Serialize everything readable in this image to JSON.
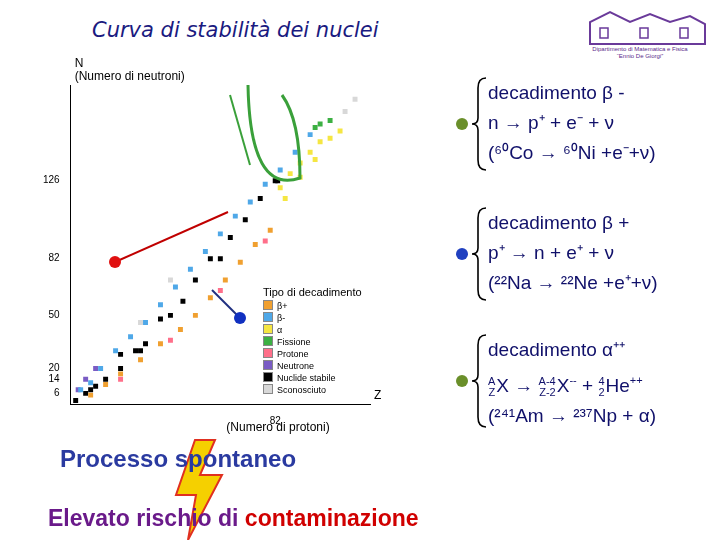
{
  "title": "Curva di stabilità dei nuclei",
  "logo": [
    "Dipartimento di Matematica e Fisica",
    "“Ennio De Giorgi”"
  ],
  "chart_data": {
    "type": "scatter",
    "xlabel": [
      "Z",
      "(Numero di protoni)"
    ],
    "ylabel": [
      "N",
      "(Numero di neutroni)"
    ],
    "xlim": [
      0,
      120
    ],
    "ylim": [
      0,
      180
    ],
    "xticks": [
      82
    ],
    "yticks": [
      6,
      14,
      20,
      50,
      82,
      126
    ],
    "grid": false,
    "legend": "lower right",
    "legend_title": "Tipo di decadimento",
    "series": [
      {
        "name": "β+",
        "color": "#f0a030",
        "marker": "square",
        "x": [
          8,
          14,
          20,
          28,
          36,
          44,
          50,
          56,
          62,
          68,
          74,
          80
        ],
        "y": [
          5,
          11,
          17,
          25,
          34,
          42,
          50,
          60,
          70,
          80,
          90,
          98
        ]
      },
      {
        "name": "β-",
        "color": "#4fa8e8",
        "marker": "square",
        "x": [
          4,
          8,
          12,
          18,
          24,
          30,
          36,
          42,
          48,
          54,
          60,
          66,
          72,
          78,
          84,
          90,
          96
        ],
        "y": [
          8,
          12,
          20,
          30,
          38,
          46,
          56,
          66,
          76,
          86,
          96,
          106,
          114,
          124,
          132,
          142,
          152
        ]
      },
      {
        "name": "α",
        "color": "#f5e642",
        "marker": "square",
        "x": [
          84,
          88,
          92,
          96,
          100,
          104,
          108,
          86,
          92,
          98
        ],
        "y": [
          122,
          130,
          136,
          142,
          148,
          150,
          154,
          116,
          128,
          138
        ]
      },
      {
        "name": "Fissione",
        "color": "#3cb043",
        "marker": "square",
        "x": [
          100,
          104,
          98
        ],
        "y": [
          158,
          160,
          156
        ]
      },
      {
        "name": "Protone",
        "color": "#ff6f8a",
        "marker": "square",
        "x": [
          20,
          40,
          60,
          78
        ],
        "y": [
          14,
          36,
          64,
          92
        ]
      },
      {
        "name": "Neutrone",
        "color": "#7a5cc4",
        "marker": "square",
        "x": [
          3,
          6,
          10
        ],
        "y": [
          8,
          14,
          20
        ]
      },
      {
        "name": "Nuclide stabile",
        "color": "#000000",
        "marker": "square",
        "x": [
          2,
          6,
          8,
          10,
          14,
          20,
          20,
          26,
          28,
          30,
          36,
          40,
          45,
          50,
          56,
          60,
          64,
          70,
          76,
          82,
          83
        ],
        "y": [
          2,
          6,
          8,
          10,
          14,
          20,
          28,
          30,
          30,
          34,
          48,
          50,
          58,
          70,
          82,
          82,
          94,
          104,
          116,
          126,
          126
        ]
      },
      {
        "name": "Sconosciuto",
        "color": "#d8d8d8",
        "marker": "square",
        "x": [
          110,
          114,
          28,
          40
        ],
        "y": [
          165,
          172,
          46,
          70
        ]
      }
    ]
  },
  "decays": [
    {
      "name": "decadimento β -",
      "equation": "n → p⁺ + e⁻ + ν",
      "example": "(⁶⁰Co → ⁶⁰Ni +e⁻+ν)",
      "bullet": "#6a8f2a"
    },
    {
      "name": "decadimento β +",
      "equation": "p⁺ → n + e⁺ + ν",
      "example": "(²²Na → ²²Ne +e⁺+ν)",
      "bullet": "#2040c0"
    },
    {
      "name": "decadimento α⁺⁺",
      "equation": {
        "parent": {
          "A": "A",
          "Z": "Z",
          "symbol": "X"
        },
        "arrow": "→",
        "daughter": {
          "A": "A-4",
          "Z": "Z-2",
          "symbol": "X",
          "charge": "--"
        },
        "plus": "+",
        "emitted": {
          "A": "4",
          "Z": "2",
          "symbol": "He",
          "charge": "++"
        }
      },
      "example": "(²⁴¹Am → ²³⁷Np + α)",
      "bullet": "#6a8f2a"
    }
  ],
  "footer": "Processo spontaneo",
  "warning": {
    "text": "Elevato rischio di",
    "highlight": "contaminazione"
  }
}
